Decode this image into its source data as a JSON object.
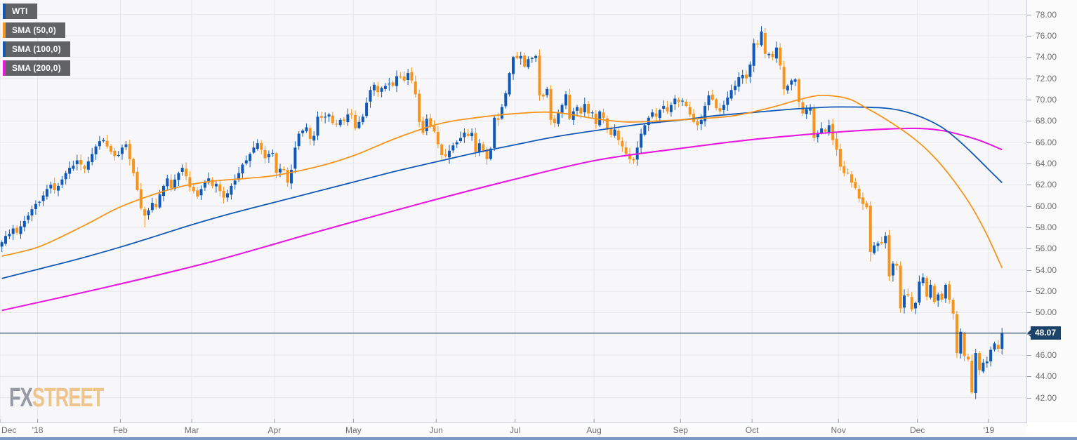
{
  "legend": {
    "items": [
      {
        "label": "WTI",
        "color": "#1159b8"
      },
      {
        "label": "SMA (50,0)",
        "color": "#f7941d"
      },
      {
        "label": "SMA (100,0)",
        "color": "#1159b8"
      },
      {
        "label": "SMA (200,0)",
        "color": "#e818e0"
      }
    ]
  },
  "watermark": {
    "fx": "FX",
    "street": "STREET",
    "fx_color": "#8d929d",
    "street_color": "#efc084"
  },
  "chart_data": {
    "type": "candlestick",
    "symbol": "WTI",
    "slots": 273,
    "first_open": 56.2,
    "colors": {
      "up": "#1159b8",
      "down": "#f7941d",
      "grid": "#e7e7eb",
      "plot_bg": "#f7f7f9",
      "axis_text": "#6e6e6e",
      "axis_line": "#c9ced8",
      "tick": "#9aa0a8"
    },
    "y_axis": {
      "min": 42,
      "max": 78,
      "step": 2,
      "hidden_label": 48,
      "format": "0.00"
    },
    "x_ticks": [
      {
        "label": "Dec",
        "day": 0
      },
      {
        "label": "'18",
        "day": 10
      },
      {
        "label": "Feb",
        "day": 32
      },
      {
        "label": "Mar",
        "day": 51
      },
      {
        "label": "Apr",
        "day": 73
      },
      {
        "label": "May",
        "day": 94
      },
      {
        "label": "Jun",
        "day": 116
      },
      {
        "label": "Jul",
        "day": 137
      },
      {
        "label": "Aug",
        "day": 158
      },
      {
        "label": "Sep",
        "day": 181
      },
      {
        "label": "Oct",
        "day": 200
      },
      {
        "label": "Nov",
        "day": 223
      },
      {
        "label": "Dec",
        "day": 244
      },
      {
        "label": "'19",
        "day": 263
      }
    ],
    "price_line": {
      "value": 48.07,
      "label": "48.07",
      "color": "#27496e",
      "tag_bg": "#1d4468"
    },
    "closes": [
      56.6,
      57.2,
      57.4,
      57.9,
      57.5,
      58.1,
      58.6,
      59.1,
      59.7,
      60.2,
      60.4,
      61.0,
      61.6,
      62.0,
      61.5,
      61.9,
      62.5,
      63.1,
      63.6,
      63.8,
      64.3,
      63.9,
      63.5,
      64.2,
      64.9,
      65.6,
      66.1,
      66.2,
      65.6,
      65.1,
      64.7,
      64.8,
      65.5,
      65.8,
      64.4,
      63.1,
      61.5,
      59.8,
      59.1,
      59.6,
      60.3,
      59.9,
      61.1,
      61.9,
      62.6,
      61.7,
      62.5,
      63.1,
      63.6,
      62.8,
      61.8,
      61.4,
      60.9,
      61.6,
      62.3,
      62.6,
      61.9,
      62.1,
      61.4,
      60.8,
      61.2,
      61.9,
      62.4,
      63.1,
      63.9,
      64.3,
      64.9,
      65.5,
      65.9,
      65.3,
      64.5,
      64.9,
      65.0,
      63.1,
      63.5,
      63.4,
      62.2,
      63.4,
      65.5,
      66.8,
      67.1,
      67.4,
      66.3,
      66.6,
      68.4,
      68.3,
      68.4,
      68.6,
      67.8,
      67.7,
      68.1,
      68.0,
      68.6,
      68.6,
      67.3,
      67.9,
      68.4,
      69.7,
      70.9,
      71.4,
      70.7,
      71.1,
      71.3,
      71.5,
      71.3,
      72.2,
      72.1,
      71.8,
      72.5,
      71.8,
      70.5,
      67.9,
      66.9,
      68.2,
      67.5,
      67.0,
      65.8,
      64.8,
      64.7,
      65.2,
      65.7,
      66.0,
      66.4,
      66.9,
      66.6,
      66.9,
      65.1,
      65.9,
      65.2,
      64.4,
      65.4,
      68.3,
      68.1,
      69.3,
      70.6,
      72.5,
      74.0,
      73.9,
      74.1,
      73.1,
      73.8,
      73.9,
      74.1,
      70.4,
      70.3,
      71.0,
      68.1,
      67.8,
      68.8,
      69.5,
      70.5,
      68.2,
      68.9,
      69.3,
      68.7,
      69.6,
      68.7,
      68.8,
      67.7,
      68.9,
      68.3,
      67.2,
      66.7,
      67.2,
      66.2,
      65.6,
      64.9,
      64.4,
      64.3,
      65.5,
      66.8,
      67.6,
      68.3,
      68.8,
      68.4,
      69.0,
      69.4,
      68.9,
      69.5,
      70.1,
      69.8,
      69.9,
      69.4,
      68.6,
      67.9,
      67.6,
      68.1,
      69.4,
      70.4,
      70.0,
      69.2,
      68.9,
      69.5,
      70.2,
      70.9,
      71.3,
      72.1,
      72.3,
      72.0,
      73.3,
      75.3,
      75.2,
      76.4,
      74.3,
      74.3,
      74.0,
      74.9,
      73.2,
      71.0,
      71.3,
      71.8,
      71.9,
      69.8,
      68.7,
      69.1,
      69.2,
      66.4,
      66.8,
      67.3,
      67.0,
      67.6,
      66.2,
      65.3,
      63.7,
      63.1,
      63.1,
      62.2,
      61.7,
      60.7,
      60.2,
      59.9,
      55.7,
      56.3,
      56.5,
      56.5,
      57.2,
      53.4,
      54.6,
      54.4,
      50.4,
      51.6,
      51.6,
      50.3,
      50.9,
      52.9,
      53.3,
      51.5,
      52.6,
      51.0,
      51.7,
      51.2,
      52.6,
      51.2,
      49.9,
      46.2,
      48.2,
      45.9,
      45.6,
      42.5,
      46.2,
      44.6,
      45.3,
      45.4,
      46.5,
      47.1,
      46.6,
      48.07
    ],
    "wick_overrides": {
      "38": {
        "l": 58.0
      },
      "108": {
        "h": 72.9
      },
      "138": {
        "h": 74.5
      },
      "202": {
        "h": 76.9
      },
      "231": {
        "l": 54.8
      },
      "258": {
        "l": 42.36
      },
      "266": {
        "h": 48.55
      }
    },
    "overlays": [
      {
        "name": "SMA (50,0)",
        "color": "#f7941d",
        "width": 1.8,
        "points": [
          [
            0,
            55.3
          ],
          [
            10,
            56.2
          ],
          [
            22,
            58.2
          ],
          [
            32,
            60.0
          ],
          [
            45,
            61.6
          ],
          [
            55,
            62.3
          ],
          [
            65,
            62.6
          ],
          [
            73,
            62.9
          ],
          [
            85,
            63.8
          ],
          [
            94,
            64.8
          ],
          [
            105,
            66.4
          ],
          [
            116,
            67.7
          ],
          [
            126,
            68.3
          ],
          [
            137,
            68.7
          ],
          [
            147,
            68.8
          ],
          [
            158,
            68.2
          ],
          [
            166,
            67.9
          ],
          [
            175,
            68.0
          ],
          [
            185,
            68.2
          ],
          [
            195,
            68.5
          ],
          [
            205,
            69.3
          ],
          [
            212,
            70.0
          ],
          [
            218,
            70.4
          ],
          [
            225,
            70.1
          ],
          [
            230,
            69.2
          ],
          [
            234,
            68.4
          ],
          [
            238,
            67.5
          ],
          [
            242,
            66.5
          ],
          [
            246,
            65.3
          ],
          [
            250,
            63.8
          ],
          [
            254,
            62.0
          ],
          [
            258,
            59.9
          ],
          [
            262,
            57.3
          ],
          [
            266,
            54.2
          ]
        ]
      },
      {
        "name": "SMA (100,0)",
        "color": "#1159b8",
        "width": 1.8,
        "points": [
          [
            0,
            53.2
          ],
          [
            10,
            54.1
          ],
          [
            20,
            55.0
          ],
          [
            32,
            56.2
          ],
          [
            42,
            57.3
          ],
          [
            51,
            58.3
          ],
          [
            62,
            59.4
          ],
          [
            73,
            60.4
          ],
          [
            84,
            61.4
          ],
          [
            94,
            62.3
          ],
          [
            105,
            63.3
          ],
          [
            116,
            64.2
          ],
          [
            126,
            65.0
          ],
          [
            137,
            65.8
          ],
          [
            147,
            66.5
          ],
          [
            158,
            67.1
          ],
          [
            170,
            67.7
          ],
          [
            181,
            68.1
          ],
          [
            190,
            68.5
          ],
          [
            200,
            68.8
          ],
          [
            210,
            69.1
          ],
          [
            220,
            69.3
          ],
          [
            228,
            69.3
          ],
          [
            235,
            69.2
          ],
          [
            240,
            68.9
          ],
          [
            245,
            68.3
          ],
          [
            250,
            67.4
          ],
          [
            254,
            66.3
          ],
          [
            258,
            65.0
          ],
          [
            262,
            63.6
          ],
          [
            266,
            62.2
          ]
        ]
      },
      {
        "name": "SMA (200,0)",
        "color": "#e818e0",
        "width": 2.1,
        "points": [
          [
            0,
            50.2
          ],
          [
            28,
            52.4
          ],
          [
            56,
            54.8
          ],
          [
            84,
            57.6
          ],
          [
            112,
            60.3
          ],
          [
            135,
            62.4
          ],
          [
            158,
            64.3
          ],
          [
            180,
            65.4
          ],
          [
            201,
            66.3
          ],
          [
            224,
            67.0
          ],
          [
            241,
            67.3
          ],
          [
            250,
            67.1
          ],
          [
            258,
            66.4
          ],
          [
            262,
            65.9
          ],
          [
            266,
            65.3
          ]
        ]
      }
    ]
  }
}
